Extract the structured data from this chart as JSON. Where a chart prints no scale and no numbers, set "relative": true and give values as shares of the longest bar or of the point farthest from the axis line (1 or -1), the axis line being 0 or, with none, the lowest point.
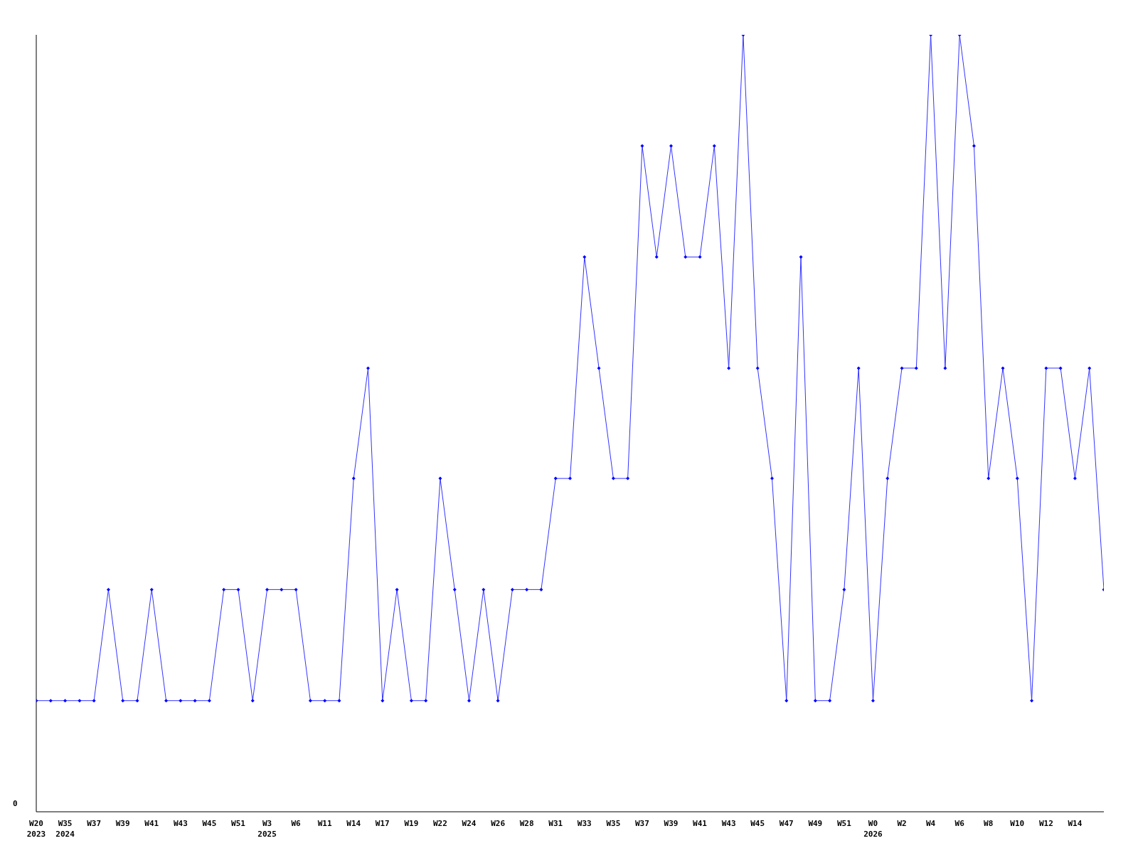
{
  "chart_data": {
    "type": "line",
    "relative": true,
    "marker": "diamond",
    "categories": [
      "W20\n2023",
      null,
      "W35\n2024",
      null,
      "W37",
      null,
      "W39",
      null,
      "W41",
      null,
      "W43",
      null,
      "W45",
      null,
      "W51",
      null,
      "W3\n2025",
      null,
      "W6",
      null,
      "W11",
      null,
      "W14",
      null,
      "W17",
      null,
      "W19",
      null,
      "W22",
      null,
      "W24",
      null,
      "W26",
      null,
      "W28",
      null,
      "W31",
      null,
      "W33",
      null,
      "W35",
      null,
      "W37",
      null,
      "W39",
      null,
      "W41",
      null,
      "W43",
      null,
      "W45",
      null,
      "W47",
      null,
      "W49",
      null,
      "W51",
      null,
      "W0\n2026",
      null,
      "W2",
      null,
      "W4",
      null,
      "W6",
      null,
      "W8",
      null,
      "W10",
      null,
      "W12",
      null,
      "W14",
      null,
      null
    ],
    "series": [
      {
        "color": "#3333ff",
        "values": [
          0.143,
          0.143,
          0.143,
          0.143,
          0.143,
          0.286,
          0.143,
          0.143,
          0.286,
          0.143,
          0.143,
          0.143,
          0.143,
          0.286,
          0.286,
          0.143,
          0.286,
          0.286,
          0.286,
          0.143,
          0.143,
          0.143,
          0.429,
          0.571,
          0.143,
          0.286,
          0.143,
          0.143,
          0.429,
          0.286,
          0.143,
          0.286,
          0.143,
          0.286,
          0.286,
          0.286,
          0.429,
          0.429,
          0.714,
          0.571,
          0.429,
          0.429,
          0.857,
          0.714,
          0.857,
          0.714,
          0.714,
          0.857,
          0.571,
          1,
          0.571,
          0.429,
          0.143,
          0.714,
          0.143,
          0.143,
          0.286,
          0.571,
          0.143,
          0.429,
          0.571,
          0.571,
          1,
          0.571,
          1,
          0.857,
          0.429,
          0.571,
          0.429,
          0.143,
          0.571,
          0.571,
          0.429,
          0.571,
          0.286
        ]
      }
    ],
    "annotations": [
      "0"
    ]
  }
}
